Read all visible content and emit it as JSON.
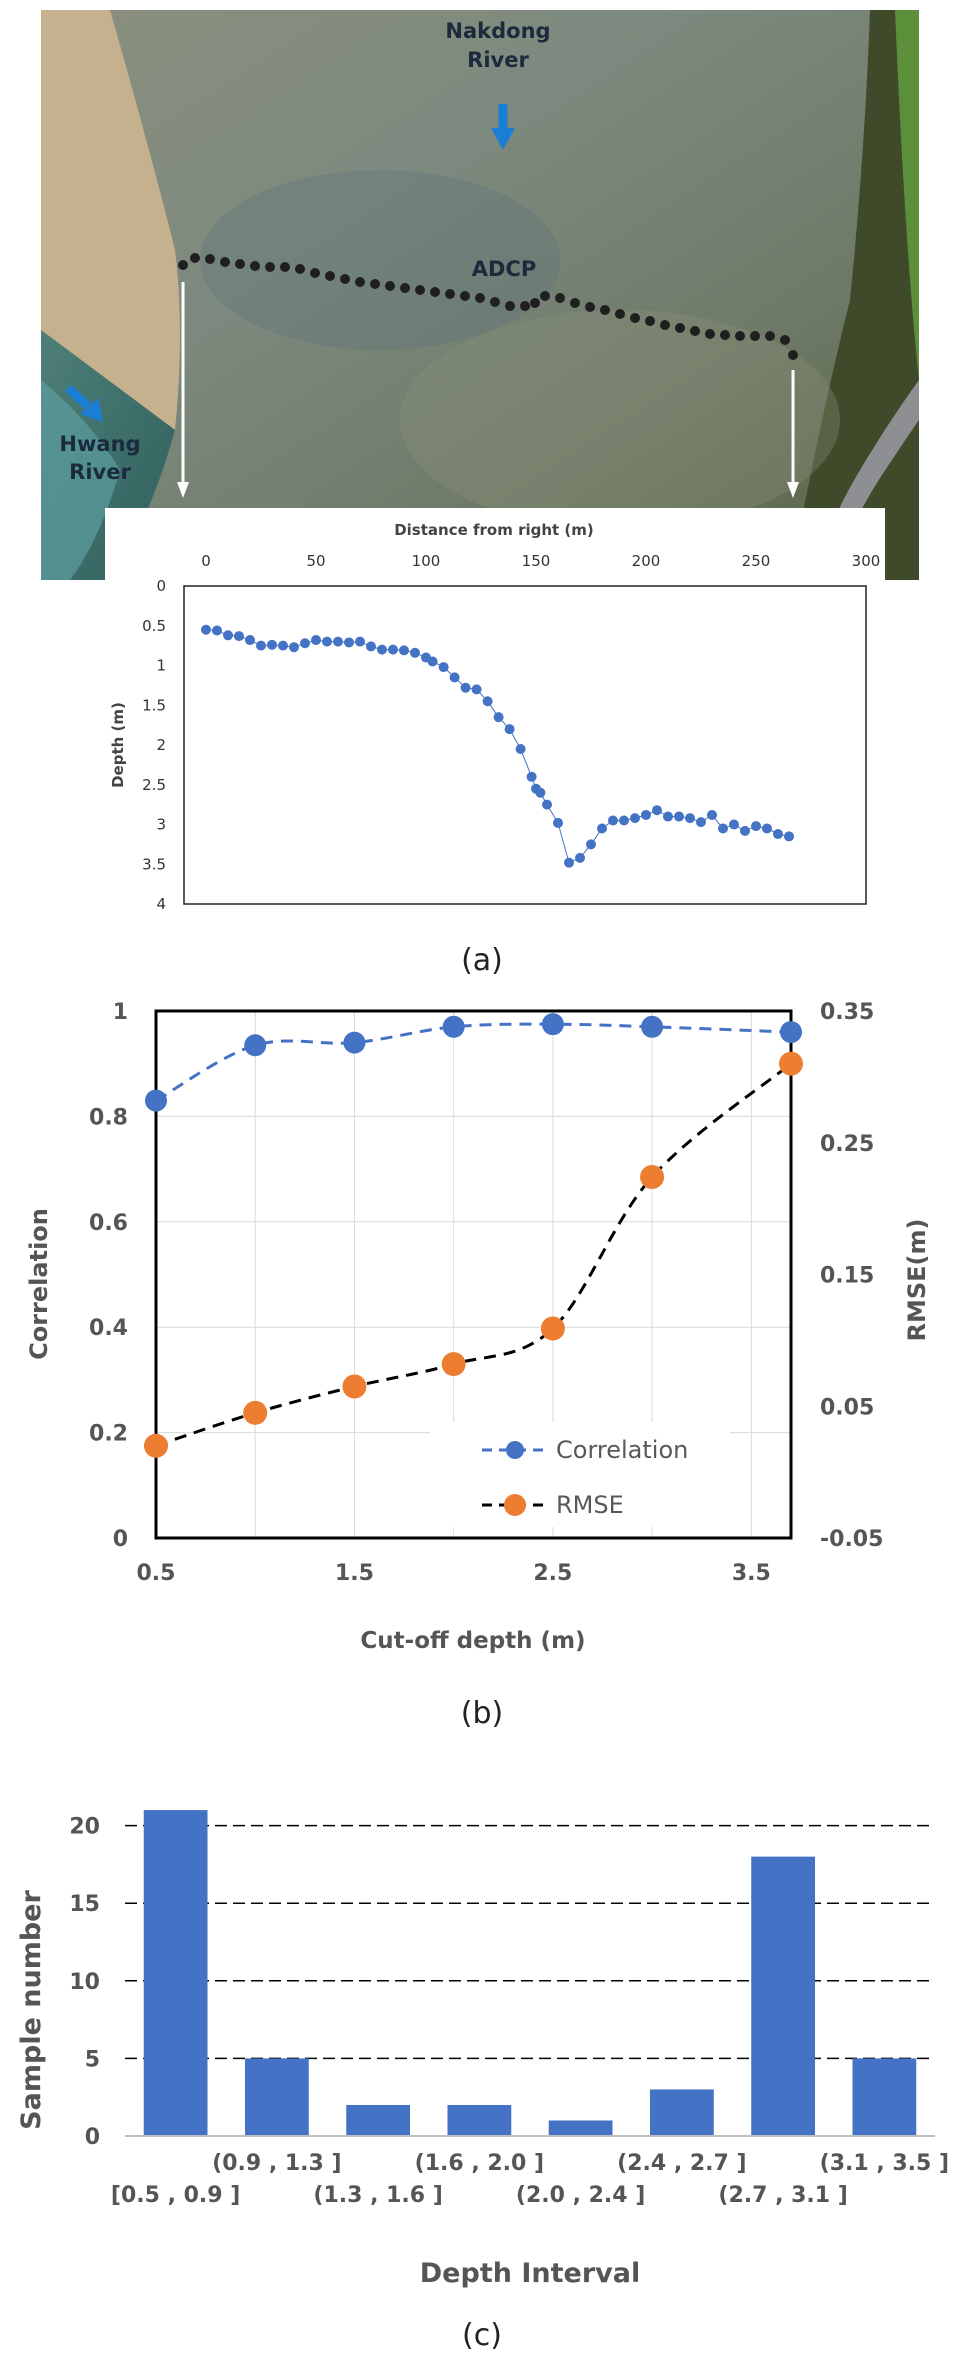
{
  "panel_a": {
    "caption": "(a)",
    "photo": {
      "label_top": "Nakdong",
      "label_top2": "River",
      "label_left": "Hwang",
      "label_left2": "River",
      "label_adcp": "ADCP",
      "arrow_color": "#1a7fd4"
    },
    "chart_data": {
      "type": "scatter",
      "title": "",
      "xlabel": "Distance from right (m)",
      "ylabel": "Depth (m)",
      "xlim": [
        -10,
        300
      ],
      "ylim": [
        0,
        4
      ],
      "y_inverted": true,
      "x_ticks": [
        "0",
        "50",
        "100",
        "150",
        "200",
        "250",
        "300"
      ],
      "y_ticks": [
        "0",
        "0.5",
        "1",
        "1.5",
        "2",
        "2.5",
        "3",
        "3.5",
        "4"
      ],
      "color": "#4472c4",
      "x": [
        0,
        5,
        10,
        15,
        20,
        25,
        30,
        35,
        40,
        45,
        50,
        55,
        60,
        65,
        70,
        75,
        80,
        85,
        90,
        95,
        100,
        103,
        108,
        113,
        118,
        123,
        128,
        133,
        138,
        143,
        148,
        150,
        152,
        155,
        160,
        165,
        170,
        175,
        180,
        185,
        190,
        195,
        200,
        205,
        210,
        215,
        220,
        225,
        230,
        235,
        240,
        245,
        250,
        255,
        260,
        265
      ],
      "y": [
        0.55,
        0.56,
        0.62,
        0.63,
        0.68,
        0.75,
        0.74,
        0.75,
        0.77,
        0.72,
        0.68,
        0.7,
        0.7,
        0.71,
        0.7,
        0.76,
        0.8,
        0.8,
        0.81,
        0.84,
        0.9,
        0.95,
        1.02,
        1.15,
        1.28,
        1.3,
        1.45,
        1.65,
        1.8,
        2.05,
        2.4,
        2.55,
        2.6,
        2.75,
        2.98,
        3.48,
        3.42,
        3.25,
        3.05,
        2.95,
        2.95,
        2.92,
        2.88,
        2.82,
        2.9,
        2.9,
        2.92,
        2.97,
        2.88,
        3.05,
        3.0,
        3.08,
        3.02,
        3.05,
        3.12,
        3.15
      ]
    }
  },
  "panel_b": {
    "caption": "(b)",
    "chart_data": {
      "type": "line",
      "title": "",
      "xlabel": "Cut-off depth (m)",
      "ylabel": "Correlation",
      "y2label": "RMSE(m)",
      "x": [
        0.5,
        1.0,
        1.5,
        2.0,
        2.5,
        3.0,
        3.7
      ],
      "xlim": [
        0.5,
        3.7
      ],
      "ylim": [
        0,
        1
      ],
      "y2lim": [
        -0.05,
        0.35
      ],
      "x_ticks": [
        "0.5",
        "1.5",
        "2.5",
        "3.5"
      ],
      "y_ticks": [
        "0",
        "0.2",
        "0.4",
        "0.6",
        "0.8",
        "1"
      ],
      "y2_ticks": [
        "-0.05",
        "0.05",
        "0.15",
        "0.25",
        "0.35"
      ],
      "series": [
        {
          "name": "Correlation",
          "axis": "left",
          "color": "#4472c4",
          "style": "dashed",
          "values": [
            0.83,
            0.935,
            0.94,
            0.97,
            0.975,
            0.97,
            0.96
          ]
        },
        {
          "name": "RMSE",
          "axis": "right",
          "color": "#ed7d31",
          "line_color": "#000000",
          "style": "dashed",
          "values": [
            0.02,
            0.045,
            0.065,
            0.082,
            0.109,
            0.224,
            0.31
          ]
        }
      ],
      "legend_position": "bottom-right",
      "grid": true
    }
  },
  "panel_c": {
    "caption": "(c)",
    "chart_data": {
      "type": "bar",
      "title": "",
      "xlabel": "Depth Interval",
      "ylabel": "Sample number",
      "categories": [
        "[0.5 , 0.9 ]",
        "(0.9 , 1.3 ]",
        "(1.3 , 1.6 ]",
        "(1.6 , 2.0 ]",
        "(2.0 , 2.4 ]",
        "(2.4 , 2.7 ]",
        "(2.7 , 3.1 ]",
        "(3.1 , 3.5 ]"
      ],
      "values": [
        21,
        5,
        2,
        2,
        1,
        3,
        18,
        5
      ],
      "ylim": [
        0,
        25
      ],
      "y_ticks": [
        "0",
        "5",
        "10",
        "15",
        "20"
      ],
      "color": "#4472c4",
      "grid": true
    }
  }
}
